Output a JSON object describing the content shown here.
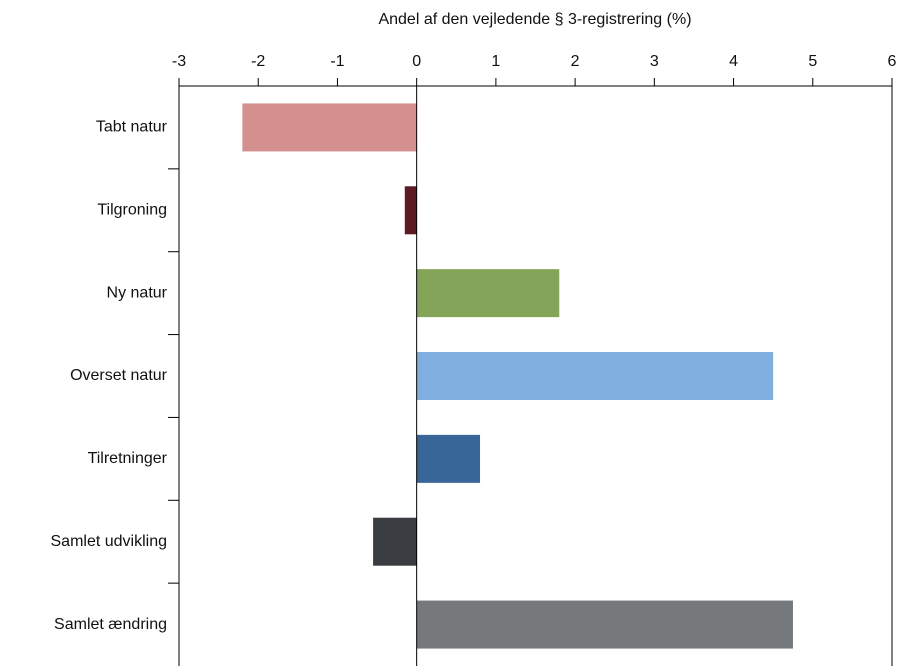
{
  "chart_data": {
    "type": "barh",
    "title": "Andel af den vejledende § 3-registrering (%)",
    "categories": [
      "Tabt natur",
      "Tilgroning",
      "Ny natur",
      "Overset natur",
      "Tilretninger",
      "Samlet udvikling",
      "Samlet ændring"
    ],
    "values": [
      -2.2,
      -0.15,
      1.8,
      4.5,
      0.8,
      -0.55,
      4.75
    ],
    "colors": [
      "#d4908f",
      "#5c1a22",
      "#84a45a",
      "#80aede",
      "#386699",
      "#393d41",
      "#76797c"
    ],
    "xlim": [
      -3,
      6
    ],
    "xticks": [
      -3,
      -2,
      -1,
      0,
      1,
      2,
      3,
      4,
      5,
      6
    ]
  }
}
